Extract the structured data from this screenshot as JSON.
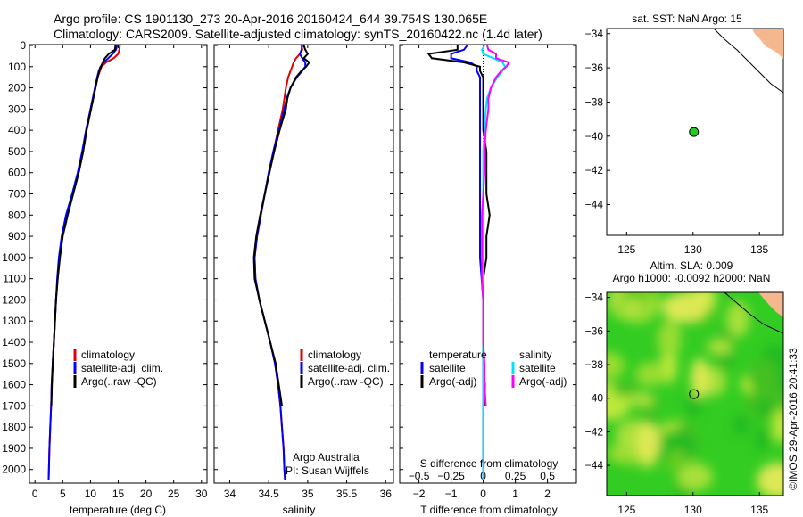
{
  "header": {
    "line1": "Argo profile: CS 1901130_273 20-Apr-2016 20160424_644 39.754S 130.065E",
    "line2": "Climatology: CARS2009. Satellite-adjusted climatology: synTS_20160422.nc (1.4d later)"
  },
  "colors": {
    "climatology": "#e00000",
    "satellite": "#0000ff",
    "argo": "#000000",
    "salinity_satellite": "#00e0ff",
    "salinity_argo": "#ff00ff",
    "land": "#f5b88e",
    "marker": "#22cc22"
  },
  "legend": {
    "climatology": "climatology",
    "satellite_clim": "satellite-adj. clim.",
    "argo": "Argo(..raw -QC)"
  },
  "legend_diff": {
    "temperature": "temperature",
    "salinity": "salinity",
    "satellite": "satellite",
    "argo_adj": "Argo(-adj)"
  },
  "annotation": {
    "line1": "Argo Australia",
    "line2": "PI: Susan Wijffels"
  },
  "chart_data": [
    {
      "type": "line",
      "xlabel": "temperature (deg C)",
      "xlim": [
        -1,
        31
      ],
      "xticks": [
        0,
        5,
        10,
        15,
        20,
        25,
        30
      ],
      "ylim": [
        0,
        2060
      ],
      "yticks": [
        0,
        100,
        200,
        300,
        400,
        500,
        600,
        700,
        800,
        900,
        1000,
        1100,
        1200,
        1300,
        1400,
        1500,
        1600,
        1700,
        1800,
        1900,
        2000
      ],
      "depth": [
        0,
        20,
        40,
        60,
        80,
        100,
        120,
        150,
        200,
        250,
        300,
        400,
        500,
        600,
        700,
        800,
        900,
        1000,
        1100,
        1200,
        1300,
        1400,
        1500,
        1600,
        1700,
        1800,
        1900,
        2000,
        2050
      ],
      "series": [
        {
          "name": "climatology",
          "color": "#e00000",
          "values": [
            15.3,
            15.2,
            15.0,
            14.2,
            12.8,
            12.0,
            11.7,
            11.3,
            10.9,
            10.5,
            10.1,
            9.3,
            8.6,
            7.8,
            6.8,
            5.7,
            4.9,
            4.4,
            4.1,
            3.8,
            3.6,
            3.4,
            3.2,
            3.0,
            2.9,
            2.75,
            2.6,
            2.5,
            2.45
          ]
        },
        {
          "name": "satellite-adj. clim.",
          "color": "#0000ff",
          "values": [
            14.8,
            14.6,
            14.0,
            13.2,
            12.4,
            11.8,
            11.5,
            11.2,
            10.8,
            10.4,
            10.0,
            9.2,
            8.5,
            7.7,
            6.7,
            5.6,
            4.8,
            4.3,
            4.0,
            3.8,
            3.6,
            3.4,
            3.2,
            3.0,
            2.9,
            2.75,
            2.6,
            2.5,
            2.45
          ]
        },
        {
          "name": "Argo(..raw -QC)",
          "color": "#000000",
          "values": [
            14.5,
            14.4,
            13.3,
            12.6,
            12.2,
            11.9,
            11.6,
            11.3,
            10.9,
            10.5,
            10.1,
            9.3,
            8.7,
            7.9,
            6.9,
            5.9,
            5.0,
            4.5,
            4.1,
            3.8,
            3.6,
            3.4,
            3.2,
            3.05,
            2.95,
            null,
            null,
            null,
            null
          ]
        }
      ]
    },
    {
      "type": "line",
      "xlabel": "salinity",
      "xlim": [
        33.8,
        36.1
      ],
      "xticks": [
        34,
        34.5,
        35,
        35.5,
        36
      ],
      "ylim": [
        0,
        2060
      ],
      "depth": [
        0,
        20,
        40,
        60,
        80,
        100,
        120,
        150,
        200,
        250,
        300,
        400,
        500,
        600,
        700,
        800,
        900,
        1000,
        1100,
        1200,
        1300,
        1400,
        1500,
        1600,
        1700,
        1800,
        1900,
        2000,
        2050
      ],
      "series": [
        {
          "name": "climatology",
          "color": "#e00000",
          "values": [
            34.92,
            34.93,
            34.9,
            34.85,
            34.82,
            34.8,
            34.78,
            34.75,
            34.72,
            34.7,
            34.68,
            34.62,
            34.56,
            34.5,
            34.45,
            34.4,
            34.35,
            34.32,
            34.33,
            34.38,
            34.45,
            34.52,
            34.58,
            34.62,
            34.65,
            34.67,
            34.69,
            34.7,
            34.71
          ]
        },
        {
          "name": "satellite-adj. clim.",
          "color": "#0000ff",
          "values": [
            34.93,
            34.92,
            34.9,
            34.93,
            34.97,
            34.97,
            34.93,
            34.86,
            34.78,
            34.73,
            34.7,
            34.63,
            34.56,
            34.5,
            34.45,
            34.4,
            34.35,
            34.32,
            34.33,
            34.38,
            34.45,
            34.52,
            34.58,
            34.62,
            34.65,
            34.67,
            34.69,
            34.7,
            34.71
          ]
        },
        {
          "name": "Argo(..raw -QC)",
          "color": "#000000",
          "values": [
            34.95,
            34.97,
            35.0,
            34.95,
            35.02,
            34.98,
            34.92,
            34.85,
            34.78,
            34.74,
            34.72,
            34.64,
            34.57,
            34.51,
            34.45,
            34.39,
            34.34,
            34.31,
            34.32,
            34.38,
            34.45,
            34.52,
            34.59,
            34.63,
            34.67,
            null,
            null,
            null,
            null
          ]
        }
      ]
    },
    {
      "type": "line",
      "xlabel": "T difference from climatology",
      "xlabel_top": "S difference from climatology",
      "xlim": [
        -2.6,
        2.9
      ],
      "xticks": [
        -2,
        -1,
        0,
        1,
        2
      ],
      "xticks_top": [
        -0.5,
        -0.25,
        0,
        0.25,
        0.5
      ],
      "ylim": [
        0,
        2060
      ],
      "depth": [
        0,
        20,
        40,
        60,
        80,
        100,
        120,
        150,
        200,
        250,
        300,
        400,
        500,
        600,
        700,
        800,
        900,
        1000,
        1100,
        1200,
        1300,
        1400,
        1500,
        1600,
        1700,
        1800,
        1900,
        2000,
        2050
      ],
      "series": [
        {
          "name": "temperature satellite",
          "color": "#0000ff",
          "values": [
            -0.5,
            -0.6,
            -1.0,
            -1.0,
            -0.4,
            -0.2,
            -0.2,
            -0.1,
            -0.1,
            -0.1,
            -0.1,
            -0.1,
            -0.1,
            -0.1,
            -0.1,
            -0.1,
            -0.1,
            -0.1,
            -0.05,
            0.0,
            0.0,
            0.0,
            0.0,
            0.0,
            0.0,
            0.0,
            0.0,
            0.0,
            0.0
          ]
        },
        {
          "name": "temperature Argo(-adj)",
          "color": "#000000",
          "values": [
            -0.8,
            -0.8,
            -1.7,
            -1.6,
            -0.6,
            -0.1,
            -0.1,
            0.0,
            0.0,
            0.0,
            0.0,
            0.0,
            0.1,
            0.1,
            0.1,
            0.2,
            0.1,
            0.1,
            0.0,
            0.0,
            0.0,
            0.0,
            0.0,
            0.05,
            0.05,
            null,
            null,
            null,
            null
          ]
        },
        {
          "name": "salinity satellite",
          "color": "#00e0ff",
          "values": [
            0.01,
            -0.01,
            0.0,
            0.08,
            0.15,
            0.17,
            0.15,
            0.11,
            0.06,
            0.03,
            0.02,
            0.01,
            0.0,
            0.0,
            0.0,
            0.0,
            0.0,
            0.0,
            0.0,
            0.0,
            0.0,
            0.0,
            0.0,
            0.0,
            0.0,
            0.0,
            0.0,
            0.0,
            0.0
          ]
        },
        {
          "name": "salinity Argo(-adj)",
          "color": "#ff00ff",
          "values": [
            0.03,
            0.04,
            0.1,
            0.1,
            0.2,
            0.18,
            0.14,
            0.1,
            0.06,
            0.04,
            0.04,
            0.02,
            0.01,
            0.01,
            0.0,
            -0.01,
            -0.01,
            -0.01,
            -0.01,
            0.0,
            0.0,
            0.0,
            0.01,
            0.01,
            0.02,
            null,
            null,
            null,
            null
          ]
        }
      ]
    },
    {
      "type": "scatter",
      "title": "sat. SST: NaN Argo: 15",
      "xlim": [
        123.5,
        136.8
      ],
      "ylim": [
        -45.8,
        -33.7
      ],
      "xticks": [
        125,
        130,
        135
      ],
      "yticks": [
        -34,
        -36,
        -38,
        -40,
        -42,
        -44
      ],
      "points": [
        {
          "x": 130.065,
          "y": -39.754
        }
      ]
    },
    {
      "type": "heatmap",
      "title_line1": "Altim. SLA: 0.009",
      "title_line2": "Argo h1000: -0.0092 h2000: NaN",
      "xlim": [
        123.5,
        136.8
      ],
      "ylim": [
        -45.8,
        -33.7
      ],
      "xticks": [
        125,
        130,
        135
      ],
      "yticks": [
        -34,
        -36,
        -38,
        -40,
        -42,
        -44
      ],
      "points": [
        {
          "x": 130.065,
          "y": -39.754
        }
      ]
    }
  ],
  "side_text": "©IMOS 29-Apr-2016 20:41:33"
}
